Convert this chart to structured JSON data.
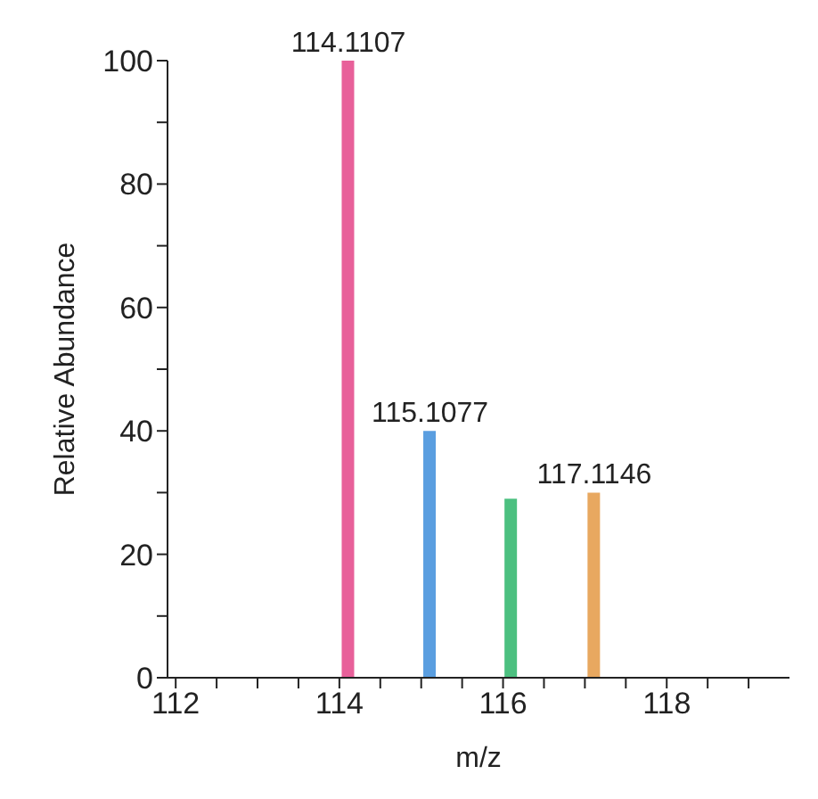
{
  "chart_data": {
    "type": "bar",
    "xlabel": "m/z",
    "ylabel": "Relative Abundance",
    "x": [
      114.1107,
      115.1077,
      116.1,
      117.1146
    ],
    "values": [
      100,
      40,
      29,
      30
    ],
    "colors": [
      "#e8609a",
      "#5a9ee0",
      "#4cc080",
      "#e8a860"
    ],
    "xlim": [
      111.9,
      119.5
    ],
    "xticks": [
      112,
      {
        "value": 112.5,
        "label": null
      },
      {
        "value": 113,
        "label": null
      },
      {
        "value": 113.5,
        "label": null
      },
      114,
      {
        "value": 114.5,
        "label": null
      },
      {
        "value": 115,
        "label": null
      },
      {
        "value": 115.5,
        "label": null
      },
      116,
      {
        "value": 116.5,
        "label": null
      },
      {
        "value": 117,
        "label": null
      },
      {
        "value": 117.5,
        "label": null
      },
      118,
      {
        "value": 118.5,
        "label": null
      },
      {
        "value": 119,
        "label": null
      }
    ],
    "ylim": [
      0,
      100
    ],
    "yticks": [
      0,
      {
        "value": 10,
        "label": null
      },
      20,
      {
        "value": 30,
        "label": null
      },
      40,
      {
        "value": 50,
        "label": null
      },
      60,
      {
        "value": 70,
        "label": null
      },
      80,
      {
        "value": 90,
        "label": null
      },
      100
    ],
    "annotations": [
      {
        "text": "114.1107",
        "x": 114.1107,
        "y": 100
      },
      {
        "text": "115.1077",
        "x": 115.1077,
        "y": 40
      },
      {
        "text": "117.1146",
        "x": 117.1146,
        "y": 30
      }
    ],
    "grid": false,
    "legend": false
  }
}
